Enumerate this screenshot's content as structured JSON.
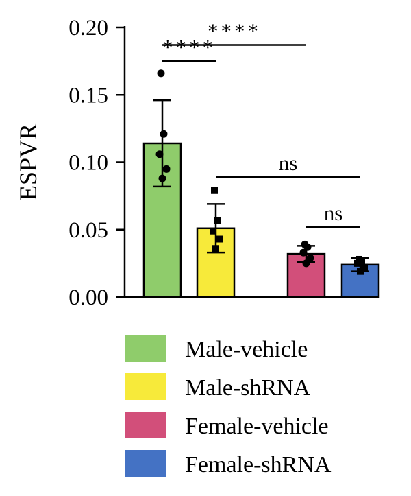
{
  "chart_data": {
    "type": "bar",
    "title": "",
    "xlabel": "",
    "ylabel": "ESPVR",
    "ylim": [
      0,
      0.2
    ],
    "yticks": [
      "0.00",
      "0.05",
      "0.10",
      "0.15",
      "0.20"
    ],
    "grid": false,
    "legend_position": "bottom",
    "categories": [
      "Male-vehicle",
      "Male-shRNA",
      "Female-vehicle",
      "Female-shRNA"
    ],
    "values": [
      0.114,
      0.051,
      0.032,
      0.024
    ],
    "errors": [
      0.032,
      0.018,
      0.006,
      0.005
    ],
    "colors": [
      "#8fcc6b",
      "#f7ea3a",
      "#d24f7a",
      "#4472c4"
    ],
    "markers": [
      "circle",
      "square",
      "circle",
      "square"
    ],
    "points": [
      [
        0.166,
        0.121,
        0.106,
        0.095,
        0.088
      ],
      [
        0.079,
        0.057,
        0.049,
        0.043,
        0.036
      ],
      [
        0.039,
        0.037,
        0.033,
        0.029,
        0.025
      ],
      [
        0.028,
        0.027,
        0.025,
        0.022,
        0.019
      ]
    ],
    "significance": [
      {
        "from": 0,
        "to": 1,
        "label": "****",
        "y": 0.175
      },
      {
        "from": 0,
        "to": 2,
        "label": "****",
        "y": 0.187
      },
      {
        "from": 1,
        "to": 3,
        "label": "ns",
        "y": 0.089
      },
      {
        "from": 2,
        "to": 3,
        "label": "ns",
        "y": 0.052
      }
    ]
  }
}
